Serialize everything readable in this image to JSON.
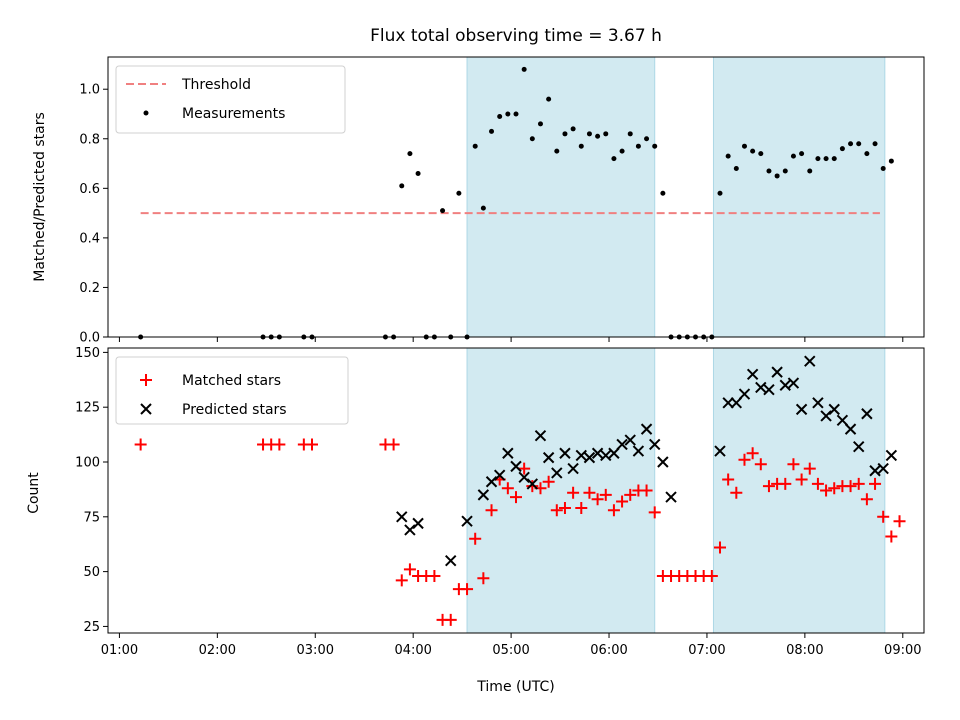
{
  "chart_data": [
    {
      "type": "scatter",
      "title": "Flux total observing time = 3.67 h",
      "ylabel": "Matched/Predicted stars",
      "xlim": [
        "00:53",
        "09:13"
      ],
      "ylim": [
        0,
        1.13
      ],
      "yticks": [
        "0.0",
        "0.2",
        "0.4",
        "0.6",
        "0.8",
        "1.0"
      ],
      "shaded_intervals": [
        [
          "04:33",
          "06:28"
        ],
        [
          "07:04",
          "08:49"
        ],
        [
          "color",
          "#add8e6"
        ]
      ],
      "legend": {
        "placement": "top-left",
        "entries": [
          "Threshold",
          "Measurements"
        ]
      },
      "threshold": {
        "name": "Threshold",
        "value": 0.5,
        "x_range": [
          "01:13",
          "08:46"
        ],
        "color": "#f08080"
      },
      "series": [
        {
          "name": "Measurements",
          "color": "#000000",
          "points": [
            [
              "01:13",
              0.0
            ],
            [
              "02:28",
              0.0
            ],
            [
              "02:33",
              0.0
            ],
            [
              "02:38",
              0.0
            ],
            [
              "02:53",
              0.0
            ],
            [
              "02:58",
              0.0
            ],
            [
              "03:43",
              0.0
            ],
            [
              "03:48",
              0.0
            ],
            [
              "03:53",
              0.61
            ],
            [
              "03:58",
              0.74
            ],
            [
              "04:03",
              0.66
            ],
            [
              "04:08",
              0.0
            ],
            [
              "04:13",
              0.0
            ],
            [
              "04:18",
              0.51
            ],
            [
              "04:23",
              0.0
            ],
            [
              "04:28",
              0.58
            ],
            [
              "04:33",
              0.0
            ],
            [
              "04:38",
              0.77
            ],
            [
              "04:43",
              0.52
            ],
            [
              "04:48",
              0.83
            ],
            [
              "04:53",
              0.89
            ],
            [
              "04:58",
              0.9
            ],
            [
              "05:03",
              0.9
            ],
            [
              "05:08",
              1.08
            ],
            [
              "05:13",
              0.8
            ],
            [
              "05:18",
              0.86
            ],
            [
              "05:23",
              0.96
            ],
            [
              "05:28",
              0.75
            ],
            [
              "05:33",
              0.82
            ],
            [
              "05:38",
              0.84
            ],
            [
              "05:43",
              0.77
            ],
            [
              "05:48",
              0.82
            ],
            [
              "05:53",
              0.81
            ],
            [
              "05:58",
              0.82
            ],
            [
              "06:03",
              0.72
            ],
            [
              "06:08",
              0.75
            ],
            [
              "06:13",
              0.82
            ],
            [
              "06:18",
              0.77
            ],
            [
              "06:23",
              0.8
            ],
            [
              "06:28",
              0.77
            ],
            [
              "06:33",
              0.58
            ],
            [
              "06:38",
              0.0
            ],
            [
              "06:43",
              0.0
            ],
            [
              "06:48",
              0.0
            ],
            [
              "06:53",
              0.0
            ],
            [
              "06:58",
              0.0
            ],
            [
              "07:03",
              0.0
            ],
            [
              "07:08",
              0.58
            ],
            [
              "07:13",
              0.73
            ],
            [
              "07:18",
              0.68
            ],
            [
              "07:23",
              0.77
            ],
            [
              "07:28",
              0.75
            ],
            [
              "07:33",
              0.74
            ],
            [
              "07:38",
              0.67
            ],
            [
              "07:43",
              0.65
            ],
            [
              "07:48",
              0.67
            ],
            [
              "07:53",
              0.73
            ],
            [
              "07:58",
              0.74
            ],
            [
              "08:03",
              0.67
            ],
            [
              "08:08",
              0.72
            ],
            [
              "08:13",
              0.72
            ],
            [
              "08:18",
              0.72
            ],
            [
              "08:23",
              0.76
            ],
            [
              "08:28",
              0.78
            ],
            [
              "08:33",
              0.78
            ],
            [
              "08:38",
              0.74
            ],
            [
              "08:43",
              0.78
            ],
            [
              "08:48",
              0.68
            ],
            [
              "08:53",
              0.71
            ]
          ]
        }
      ]
    },
    {
      "type": "scatter",
      "xlabel": "Time (UTC)",
      "ylabel": "Count",
      "xlim": [
        "00:53",
        "09:13"
      ],
      "ylim": [
        22,
        152
      ],
      "yticks": [
        "25",
        "50",
        "75",
        "100",
        "125",
        "150"
      ],
      "xticks": [
        "01:00",
        "02:00",
        "03:00",
        "04:00",
        "05:00",
        "06:00",
        "07:00",
        "08:00",
        "09:00"
      ],
      "shaded_intervals": [
        [
          "04:33",
          "06:28"
        ],
        [
          "07:04",
          "08:49"
        ]
      ],
      "legend": {
        "placement": "top-left",
        "entries": [
          "Matched stars",
          "Predicted stars"
        ]
      },
      "series": [
        {
          "name": "Matched stars",
          "color": "#ff0000",
          "marker": "plus",
          "points": [
            [
              "01:13",
              108
            ],
            [
              "02:28",
              108
            ],
            [
              "02:33",
              108
            ],
            [
              "02:38",
              108
            ],
            [
              "02:53",
              108
            ],
            [
              "02:58",
              108
            ],
            [
              "03:43",
              108
            ],
            [
              "03:48",
              108
            ],
            [
              "03:53",
              46
            ],
            [
              "03:58",
              51
            ],
            [
              "04:03",
              48
            ],
            [
              "04:08",
              48
            ],
            [
              "04:13",
              48
            ],
            [
              "04:18",
              28
            ],
            [
              "04:23",
              28
            ],
            [
              "04:28",
              42
            ],
            [
              "04:33",
              42
            ],
            [
              "04:38",
              65
            ],
            [
              "04:43",
              47
            ],
            [
              "04:48",
              78
            ],
            [
              "04:53",
              92
            ],
            [
              "04:58",
              88
            ],
            [
              "05:03",
              84
            ],
            [
              "05:08",
              97
            ],
            [
              "05:13",
              89
            ],
            [
              "05:18",
              88
            ],
            [
              "05:23",
              91
            ],
            [
              "05:28",
              78
            ],
            [
              "05:33",
              79
            ],
            [
              "05:38",
              86
            ],
            [
              "05:43",
              79
            ],
            [
              "05:48",
              86
            ],
            [
              "05:53",
              83
            ],
            [
              "05:58",
              85
            ],
            [
              "06:03",
              78
            ],
            [
              "06:08",
              82
            ],
            [
              "06:13",
              85
            ],
            [
              "06:18",
              87
            ],
            [
              "06:23",
              87
            ],
            [
              "06:28",
              77
            ],
            [
              "06:33",
              48
            ],
            [
              "06:38",
              48
            ],
            [
              "06:43",
              48
            ],
            [
              "06:48",
              48
            ],
            [
              "06:53",
              48
            ],
            [
              "06:58",
              48
            ],
            [
              "07:03",
              48
            ],
            [
              "07:08",
              61
            ],
            [
              "07:13",
              92
            ],
            [
              "07:18",
              86
            ],
            [
              "07:23",
              101
            ],
            [
              "07:28",
              104
            ],
            [
              "07:33",
              99
            ],
            [
              "07:38",
              89
            ],
            [
              "07:43",
              90
            ],
            [
              "07:48",
              90
            ],
            [
              "07:53",
              99
            ],
            [
              "07:58",
              92
            ],
            [
              "08:03",
              97
            ],
            [
              "08:08",
              90
            ],
            [
              "08:13",
              87
            ],
            [
              "08:18",
              88
            ],
            [
              "08:23",
              89
            ],
            [
              "08:28",
              89
            ],
            [
              "08:33",
              90
            ],
            [
              "08:38",
              83
            ],
            [
              "08:43",
              90
            ],
            [
              "08:48",
              75
            ],
            [
              "08:53",
              66
            ],
            [
              "08:58",
              73
            ]
          ]
        },
        {
          "name": "Predicted stars",
          "color": "#000000",
          "marker": "x",
          "points": [
            [
              "03:53",
              75
            ],
            [
              "03:58",
              69
            ],
            [
              "04:03",
              72
            ],
            [
              "04:23",
              55
            ],
            [
              "04:33",
              73
            ],
            [
              "04:43",
              85
            ],
            [
              "04:48",
              91
            ],
            [
              "04:53",
              94
            ],
            [
              "04:58",
              104
            ],
            [
              "05:03",
              98
            ],
            [
              "05:08",
              93
            ],
            [
              "05:13",
              90
            ],
            [
              "05:18",
              112
            ],
            [
              "05:23",
              102
            ],
            [
              "05:28",
              95
            ],
            [
              "05:33",
              104
            ],
            [
              "05:38",
              97
            ],
            [
              "05:43",
              103
            ],
            [
              "05:48",
              102
            ],
            [
              "05:53",
              104
            ],
            [
              "05:58",
              103
            ],
            [
              "06:03",
              104
            ],
            [
              "06:08",
              108
            ],
            [
              "06:13",
              110
            ],
            [
              "06:18",
              105
            ],
            [
              "06:23",
              115
            ],
            [
              "06:28",
              108
            ],
            [
              "06:33",
              100
            ],
            [
              "06:38",
              84
            ],
            [
              "07:08",
              105
            ],
            [
              "07:13",
              127
            ],
            [
              "07:18",
              127
            ],
            [
              "07:23",
              131
            ],
            [
              "07:28",
              140
            ],
            [
              "07:33",
              134
            ],
            [
              "07:38",
              133
            ],
            [
              "07:43",
              141
            ],
            [
              "07:48",
              135
            ],
            [
              "07:53",
              136
            ],
            [
              "07:58",
              124
            ],
            [
              "08:03",
              146
            ],
            [
              "08:08",
              127
            ],
            [
              "08:13",
              121
            ],
            [
              "08:18",
              124
            ],
            [
              "08:23",
              119
            ],
            [
              "08:28",
              115
            ],
            [
              "08:33",
              107
            ],
            [
              "08:38",
              122
            ],
            [
              "08:43",
              96
            ],
            [
              "08:48",
              97
            ],
            [
              "08:53",
              103
            ]
          ]
        }
      ]
    }
  ]
}
